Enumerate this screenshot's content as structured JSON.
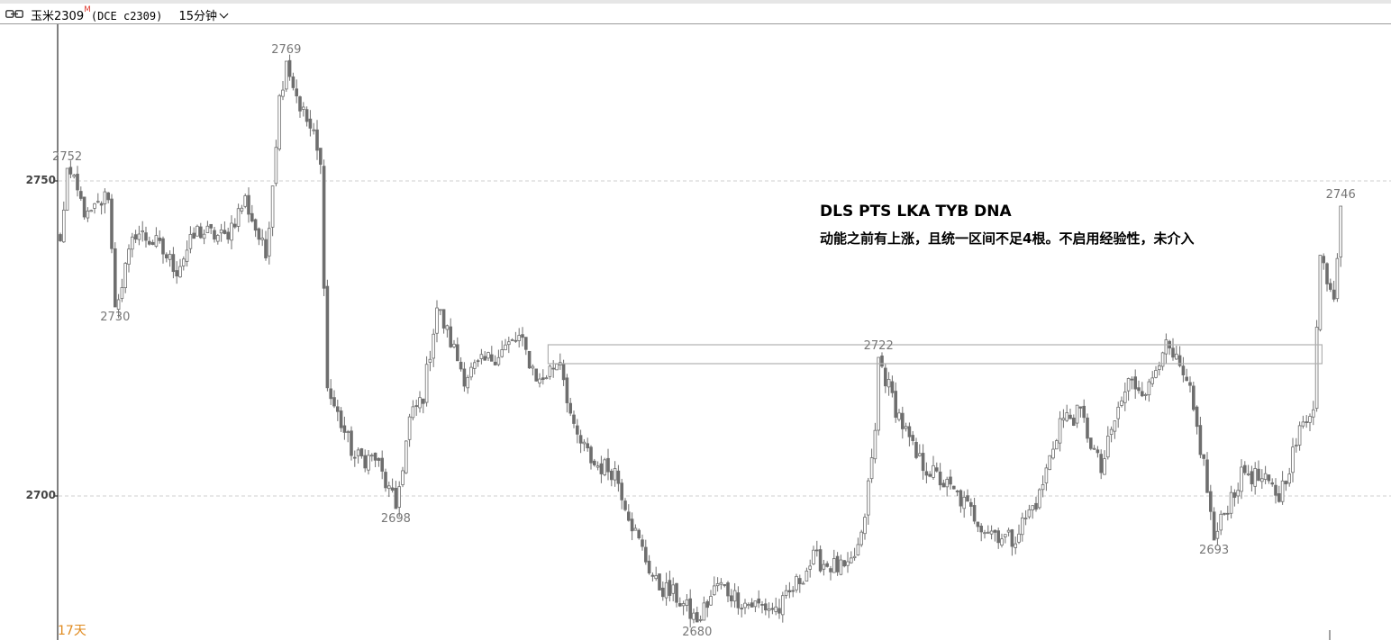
{
  "header": {
    "instrument": "玉米2309",
    "badge": "M",
    "contract": "(DCE c2309)",
    "period": "15分钟"
  },
  "annotations": {
    "line1": "DLS PTS LKA TYB DNA",
    "line2": "动能之前有上涨，且统一区间不足4根。不启用经验性，未介入"
  },
  "footer": {
    "days": "17天"
  },
  "colors": {
    "candle": "#6e6e6e",
    "grid": "#cfcfcf",
    "box": "#b0b0b0",
    "days": "#e08a1e"
  },
  "chart_data": {
    "type": "candlestick",
    "ylim": [
      2677,
      2771
    ],
    "yticks": [
      2750,
      2700
    ],
    "grid": "horizontal dashed at ticks",
    "swing_labels": [
      {
        "index": 2,
        "value": 2752,
        "text": "2752",
        "pos": "above"
      },
      {
        "index": 16,
        "value": 2730,
        "text": "2730",
        "pos": "below"
      },
      {
        "index": 66,
        "value": 2769,
        "text": "2769",
        "pos": "above"
      },
      {
        "index": 98,
        "value": 2698,
        "text": "2698",
        "pos": "below"
      },
      {
        "index": 186,
        "value": 2680,
        "text": "2680",
        "pos": "below"
      },
      {
        "index": 239,
        "value": 2722,
        "text": "2722",
        "pos": "above"
      },
      {
        "index": 337,
        "value": 2693,
        "text": "2693",
        "pos": "below"
      },
      {
        "index": 374,
        "value": 2746,
        "text": "2746",
        "pos": "above"
      }
    ],
    "range_box": {
      "from_index": 143,
      "to_index": 368,
      "low": 2721,
      "high": 2724
    },
    "waypoints": [
      [
        0,
        2740
      ],
      [
        2,
        2752
      ],
      [
        8,
        2744
      ],
      [
        14,
        2748
      ],
      [
        16,
        2730
      ],
      [
        22,
        2742
      ],
      [
        28,
        2740
      ],
      [
        34,
        2736
      ],
      [
        40,
        2742
      ],
      [
        48,
        2741
      ],
      [
        54,
        2747
      ],
      [
        60,
        2738
      ],
      [
        62,
        2750
      ],
      [
        64,
        2763
      ],
      [
        66,
        2769
      ],
      [
        70,
        2762
      ],
      [
        74,
        2757
      ],
      [
        76,
        2752
      ],
      [
        78,
        2717
      ],
      [
        86,
        2706
      ],
      [
        92,
        2706
      ],
      [
        98,
        2698
      ],
      [
        102,
        2712
      ],
      [
        106,
        2716
      ],
      [
        110,
        2730
      ],
      [
        118,
        2719
      ],
      [
        126,
        2722
      ],
      [
        134,
        2725
      ],
      [
        140,
        2718
      ],
      [
        146,
        2722
      ],
      [
        150,
        2710
      ],
      [
        156,
        2705
      ],
      [
        162,
        2704
      ],
      [
        168,
        2694
      ],
      [
        174,
        2686
      ],
      [
        180,
        2684
      ],
      [
        186,
        2680
      ],
      [
        192,
        2686
      ],
      [
        200,
        2683
      ],
      [
        210,
        2682
      ],
      [
        220,
        2690
      ],
      [
        230,
        2688
      ],
      [
        234,
        2693
      ],
      [
        238,
        2710
      ],
      [
        239,
        2722
      ],
      [
        244,
        2714
      ],
      [
        250,
        2706
      ],
      [
        256,
        2703
      ],
      [
        262,
        2700
      ],
      [
        270,
        2695
      ],
      [
        278,
        2693
      ],
      [
        286,
        2700
      ],
      [
        292,
        2712
      ],
      [
        298,
        2713
      ],
      [
        304,
        2704
      ],
      [
        308,
        2712
      ],
      [
        312,
        2718
      ],
      [
        318,
        2717
      ],
      [
        322,
        2724
      ],
      [
        326,
        2721
      ],
      [
        330,
        2716
      ],
      [
        334,
        2705
      ],
      [
        337,
        2693
      ],
      [
        342,
        2700
      ],
      [
        346,
        2704
      ],
      [
        352,
        2702
      ],
      [
        356,
        2700
      ],
      [
        362,
        2710
      ],
      [
        366,
        2715
      ],
      [
        368,
        2738
      ],
      [
        372,
        2732
      ],
      [
        374,
        2746
      ]
    ]
  }
}
